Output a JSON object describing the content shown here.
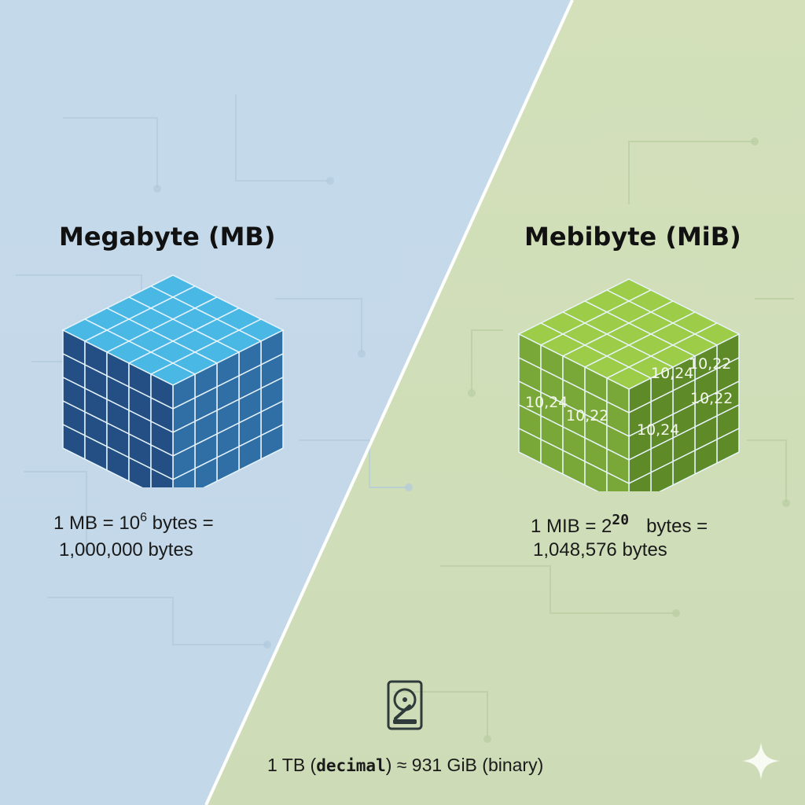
{
  "colors": {
    "left_bg": "#c6dbe9",
    "right_bg": "#cfdeb8",
    "mb_cube_top": "#4ab8e4",
    "mb_cube_front": "#2f6fa6",
    "mb_cube_side": "#234f85",
    "mib_cube_top": "#9ccc48",
    "mib_cube_front": "#7aa838",
    "mib_cube_side": "#5e8a28"
  },
  "left": {
    "title": "Megabyte (MB)",
    "eq_prefix": "1 MB = 10",
    "eq_exp": "6",
    "eq_suffix": " bytes =",
    "value": "1,000,000 bytes"
  },
  "right": {
    "title": "Mebibyte (MiB)",
    "eq_prefix": "1 MIB = 2",
    "eq_exp": "20",
    "eq_suffix": "bytes =",
    "value": "1,048,576 bytes",
    "cube_labels": [
      "10,24",
      "10,22",
      "10,24",
      "10,22",
      "10,24",
      "10,22"
    ]
  },
  "footer": {
    "icon": "hard-drive-icon",
    "prefix": "1 TB (",
    "word": "decimal",
    "suffix": ") ≈ 931 GiB (binary)"
  },
  "corner_icon": "sparkle-icon"
}
